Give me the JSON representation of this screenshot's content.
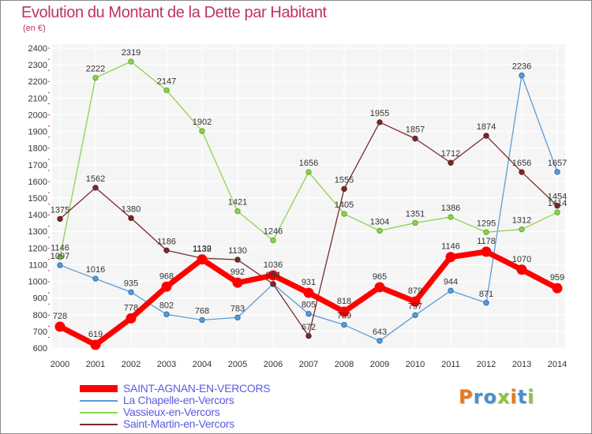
{
  "header": {
    "title": "Evolution du Montant de la Dette par Habitant",
    "unit": "(en €)"
  },
  "logo": {
    "letters": [
      "P",
      "r",
      "o",
      "x",
      "i",
      "t",
      "i"
    ],
    "colors": [
      "#e8791c",
      "#4a8fd0",
      "#4a8fd0",
      "#8bc53f",
      "#e8791c",
      "#4a8fd0",
      "#8bc53f"
    ]
  },
  "chart_data": {
    "type": "line",
    "x": [
      "2000",
      "2001",
      "2002",
      "2003",
      "2004",
      "2005",
      "2006",
      "2007",
      "2008",
      "2009",
      "2010",
      "2011",
      "2012",
      "2013",
      "2014"
    ],
    "ylim": [
      600,
      2400
    ],
    "yticks": [
      600,
      700,
      800,
      900,
      1000,
      1100,
      1200,
      1300,
      1400,
      1500,
      1600,
      1700,
      1800,
      1900,
      2000,
      2100,
      2200,
      2300,
      2400
    ],
    "grid": true,
    "legend_position": "bottom-left",
    "series": [
      {
        "name": "SAINT-AGNAN-EN-VERCORS",
        "color": "#ff0000",
        "values": [
          728,
          619,
          778,
          968,
          1132,
          992,
          1036,
          931,
          818,
          965,
          879,
          1146,
          1178,
          1070,
          959
        ]
      },
      {
        "name": "La Chapelle-en-Vercors",
        "color": "#5b9bd5",
        "values": [
          1097,
          1016,
          935,
          802,
          768,
          783,
          984,
          805,
          739,
          643,
          797,
          944,
          871,
          2236,
          1657
        ]
      },
      {
        "name": "Vassieux-en-Vercors",
        "color": "#8fd14f",
        "values": [
          1146,
          2222,
          2319,
          2147,
          1902,
          1421,
          1246,
          1656,
          1405,
          1304,
          1351,
          1386,
          1295,
          1312,
          1414
        ]
      },
      {
        "name": "Saint-Martin-en-Vercors",
        "color": "#7a2a2a",
        "values": [
          1375,
          1562,
          1380,
          1186,
          1139,
          1130,
          984,
          672,
          1555,
          1955,
          1857,
          1712,
          1874,
          1656,
          1454
        ]
      }
    ]
  }
}
